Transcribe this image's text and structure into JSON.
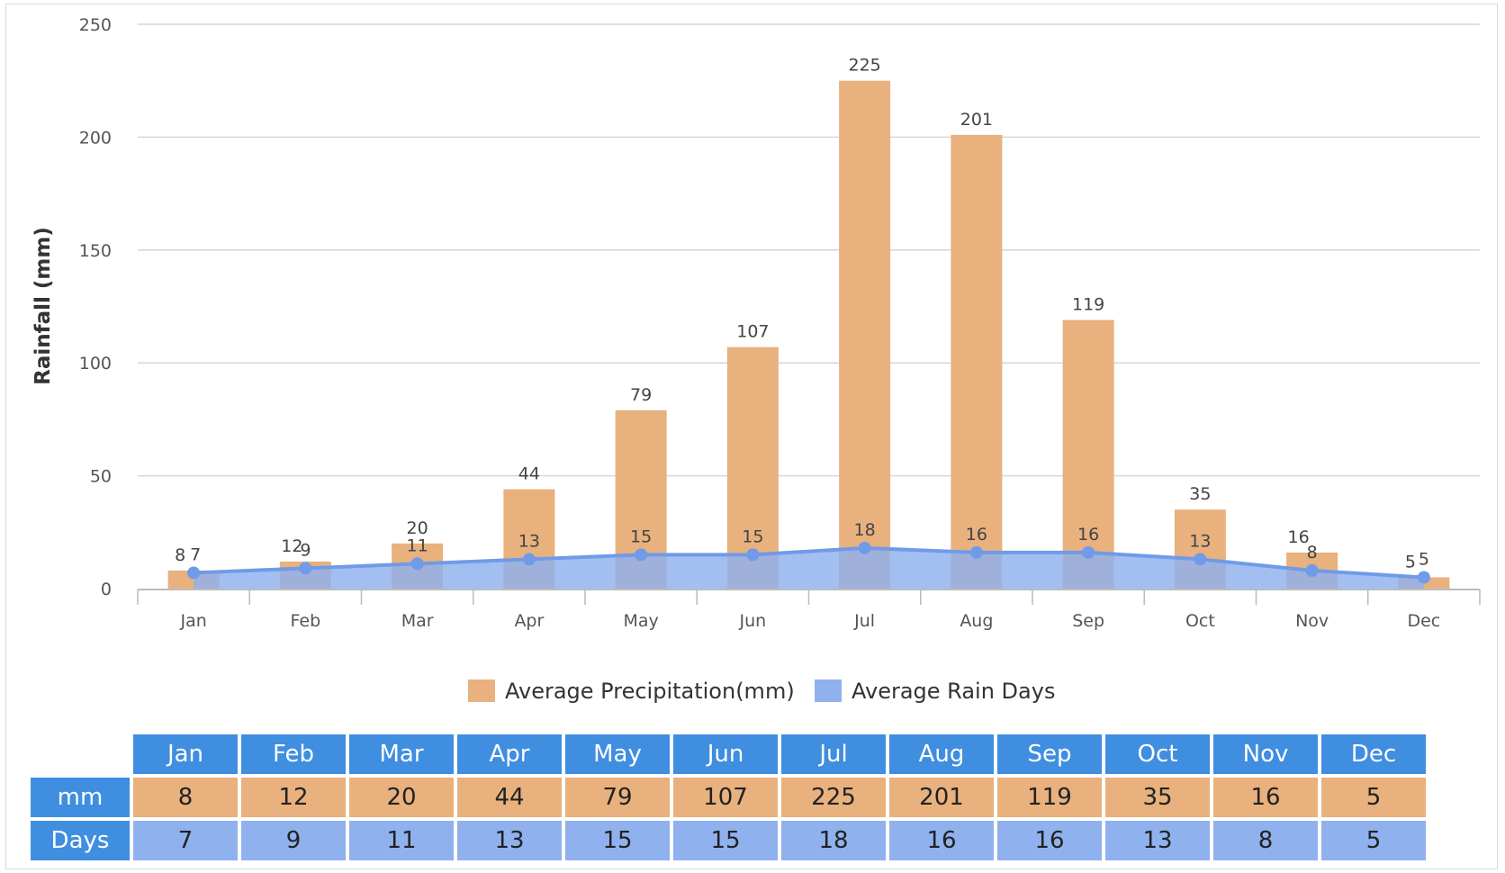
{
  "chart_data": {
    "type": "bar",
    "title": "",
    "xlabel": "",
    "ylabel": "Rainfall (mm)",
    "ylim": [
      0,
      250
    ],
    "yticks": [
      0,
      50,
      100,
      150,
      200,
      250
    ],
    "categories": [
      "Jan",
      "Feb",
      "Mar",
      "Apr",
      "May",
      "Jun",
      "Jul",
      "Aug",
      "Sep",
      "Oct",
      "Nov",
      "Dec"
    ],
    "series": [
      {
        "name": "Average Precipitation(mm)",
        "type": "bar",
        "color": "#e8b17e",
        "values": [
          8,
          12,
          20,
          44,
          79,
          107,
          225,
          201,
          119,
          35,
          16,
          5
        ]
      },
      {
        "name": "Average Rain Days",
        "type": "area",
        "color": "#8fb1ee",
        "line_color": "#6f9be8",
        "values": [
          7,
          9,
          11,
          13,
          15,
          15,
          18,
          16,
          16,
          13,
          8,
          5
        ]
      }
    ],
    "legend_position": "bottom-center"
  },
  "table": {
    "months": [
      "Jan",
      "Feb",
      "Mar",
      "Apr",
      "May",
      "Jun",
      "Jul",
      "Aug",
      "Sep",
      "Oct",
      "Nov",
      "Dec"
    ],
    "rows": [
      {
        "label": "mm",
        "values": [
          8,
          12,
          20,
          44,
          79,
          107,
          225,
          201,
          119,
          35,
          16,
          5
        ]
      },
      {
        "label": "Days",
        "values": [
          7,
          9,
          11,
          13,
          15,
          15,
          18,
          16,
          16,
          13,
          8,
          5
        ]
      }
    ]
  }
}
